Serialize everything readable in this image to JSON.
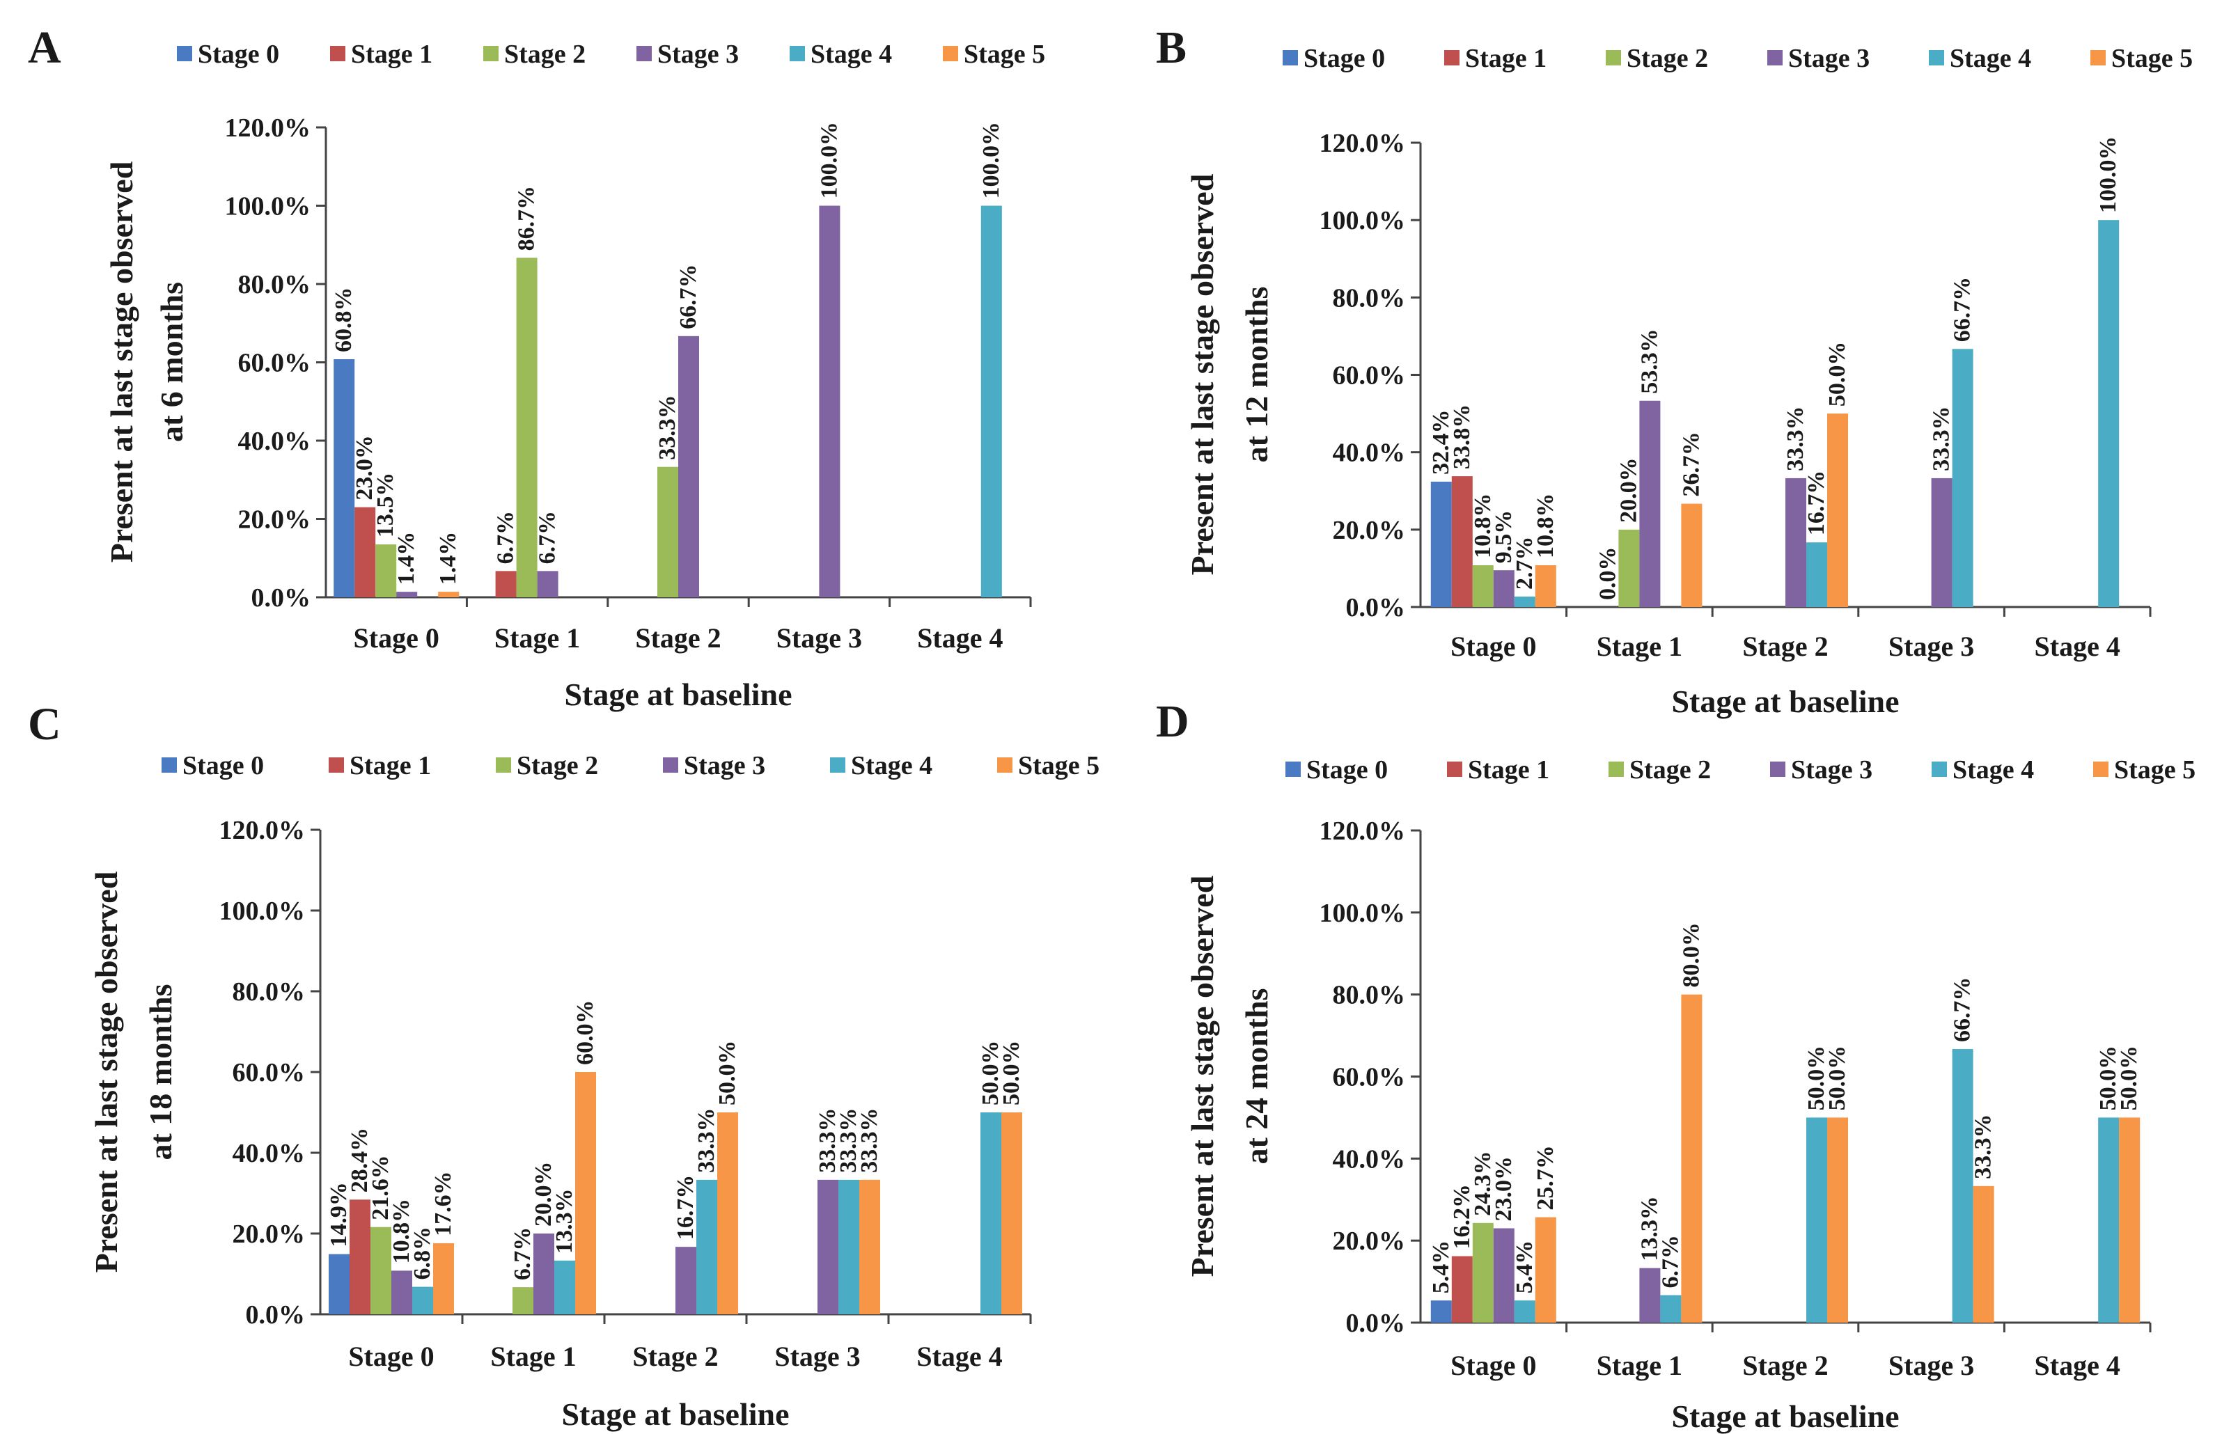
{
  "figure": {
    "legend_names": [
      "Stage 0",
      "Stage 1",
      "Stage 2",
      "Stage 3",
      "Stage 4",
      "Stage 5"
    ],
    "series_colors": [
      "#4a7bc2",
      "#c0504d",
      "#9bbb59",
      "#8064a2",
      "#4bacc6",
      "#f79646"
    ]
  },
  "chart_data": [
    {
      "panel": "A",
      "type": "bar",
      "title": "",
      "xlabel": "Stage at baseline",
      "ylabel": [
        "Present at last stage observed",
        "at 6 months"
      ],
      "ylim": [
        0,
        120
      ],
      "yticks": [
        "0.0%",
        "20.0%",
        "40.0%",
        "60.0%",
        "80.0%",
        "100.0%",
        "120.0%"
      ],
      "categories": [
        "Stage 0",
        "Stage 1",
        "Stage 2",
        "Stage 3",
        "Stage 4"
      ],
      "series": [
        {
          "name": "Stage 0",
          "values": [
            60.8,
            null,
            null,
            null,
            null
          ],
          "labels": [
            "60.8%",
            null,
            null,
            null,
            null
          ]
        },
        {
          "name": "Stage 1",
          "values": [
            23.0,
            6.7,
            null,
            null,
            null
          ],
          "labels": [
            "23.0%",
            "6.7%",
            null,
            null,
            null
          ]
        },
        {
          "name": "Stage 2",
          "values": [
            13.5,
            86.7,
            33.3,
            null,
            null
          ],
          "labels": [
            "13.5%",
            "86.7%",
            "33.3%",
            null,
            null
          ]
        },
        {
          "name": "Stage 3",
          "values": [
            1.4,
            6.7,
            66.7,
            100.0,
            null
          ],
          "labels": [
            "1.4%",
            "6.7%",
            "66.7%",
            "100.0%",
            null
          ]
        },
        {
          "name": "Stage 4",
          "values": [
            null,
            null,
            null,
            null,
            100.0
          ],
          "labels": [
            null,
            null,
            null,
            null,
            "100.0%"
          ]
        },
        {
          "name": "Stage 5",
          "values": [
            1.4,
            null,
            null,
            null,
            null
          ],
          "labels": [
            "1.4%",
            null,
            null,
            null,
            null
          ]
        }
      ]
    },
    {
      "panel": "B",
      "type": "bar",
      "title": "",
      "xlabel": "Stage at baseline",
      "ylabel": [
        "Present at last stage observed",
        "at 12 months"
      ],
      "ylim": [
        0,
        120
      ],
      "yticks": [
        "0.0%",
        "20.0%",
        "40.0%",
        "60.0%",
        "80.0%",
        "100.0%",
        "120.0%"
      ],
      "categories": [
        "Stage 0",
        "Stage 1",
        "Stage 2",
        "Stage 3",
        "Stage 4"
      ],
      "series": [
        {
          "name": "Stage 0",
          "values": [
            32.4,
            null,
            null,
            null,
            null
          ],
          "labels": [
            "32.4%",
            null,
            null,
            null,
            null
          ]
        },
        {
          "name": "Stage 1",
          "values": [
            33.8,
            0.0,
            null,
            null,
            null
          ],
          "labels": [
            "33.8%",
            "0.0%",
            null,
            null,
            null
          ]
        },
        {
          "name": "Stage 2",
          "values": [
            10.8,
            20.0,
            null,
            null,
            null
          ],
          "labels": [
            "10.8%",
            "20.0%",
            null,
            null,
            null
          ]
        },
        {
          "name": "Stage 3",
          "values": [
            9.5,
            53.3,
            33.3,
            33.3,
            null
          ],
          "labels": [
            "9.5%",
            "53.3%",
            "33.3%",
            "33.3%",
            null
          ]
        },
        {
          "name": "Stage 4",
          "values": [
            2.7,
            null,
            16.7,
            66.7,
            100.0
          ],
          "labels": [
            "2.7%",
            null,
            "16.7%",
            "66.7%",
            "100.0%"
          ]
        },
        {
          "name": "Stage 5",
          "values": [
            10.8,
            26.7,
            50.0,
            null,
            null
          ],
          "labels": [
            "10.8%",
            "26.7%",
            "50.0%",
            null,
            null
          ]
        }
      ]
    },
    {
      "panel": "C",
      "type": "bar",
      "title": "",
      "xlabel": "Stage at baseline",
      "ylabel": [
        "Present at last stage observed",
        "at 18 months"
      ],
      "ylim": [
        0,
        120
      ],
      "yticks": [
        "0.0%",
        "20.0%",
        "40.0%",
        "60.0%",
        "80.0%",
        "100.0%",
        "120.0%"
      ],
      "categories": [
        "Stage 0",
        "Stage 1",
        "Stage 2",
        "Stage 3",
        "Stage 4"
      ],
      "series": [
        {
          "name": "Stage 0",
          "values": [
            14.9,
            null,
            null,
            null,
            null
          ],
          "labels": [
            "14.9%",
            null,
            null,
            null,
            null
          ]
        },
        {
          "name": "Stage 1",
          "values": [
            28.4,
            null,
            null,
            null,
            null
          ],
          "labels": [
            "28.4%",
            null,
            null,
            null,
            null
          ]
        },
        {
          "name": "Stage 2",
          "values": [
            21.6,
            6.7,
            null,
            null,
            null
          ],
          "labels": [
            "21.6%",
            "6.7%",
            null,
            null,
            null
          ]
        },
        {
          "name": "Stage 3",
          "values": [
            10.8,
            20.0,
            16.7,
            33.3,
            null
          ],
          "labels": [
            "10.8%",
            "20.0%",
            "16.7%",
            "33.3%",
            null
          ]
        },
        {
          "name": "Stage 4",
          "values": [
            6.8,
            13.3,
            33.3,
            33.3,
            50.0
          ],
          "labels": [
            "6.8%",
            "13.3%",
            "33.3%",
            "33.3%",
            "50.0%"
          ]
        },
        {
          "name": "Stage 5",
          "values": [
            17.6,
            60.0,
            50.0,
            33.3,
            50.0
          ],
          "labels": [
            "17.6%",
            "60.0%",
            "50.0%",
            "33.3%",
            "50.0%"
          ]
        }
      ]
    },
    {
      "panel": "D",
      "type": "bar",
      "title": "",
      "xlabel": "Stage at baseline",
      "ylabel": [
        "Present at last stage observed",
        "at 24 months"
      ],
      "ylim": [
        0,
        120
      ],
      "yticks": [
        "0.0%",
        "20.0%",
        "40.0%",
        "60.0%",
        "80.0%",
        "100.0%",
        "120.0%"
      ],
      "categories": [
        "Stage 0",
        "Stage 1",
        "Stage 2",
        "Stage 3",
        "Stage 4"
      ],
      "series": [
        {
          "name": "Stage 0",
          "values": [
            5.4,
            null,
            null,
            null,
            null
          ],
          "labels": [
            "5.4%",
            null,
            null,
            null,
            null
          ]
        },
        {
          "name": "Stage 1",
          "values": [
            16.2,
            null,
            null,
            null,
            null
          ],
          "labels": [
            "16.2%",
            null,
            null,
            null,
            null
          ]
        },
        {
          "name": "Stage 2",
          "values": [
            24.3,
            null,
            null,
            null,
            null
          ],
          "labels": [
            "24.3%",
            null,
            null,
            null,
            null
          ]
        },
        {
          "name": "Stage 3",
          "values": [
            23.0,
            13.3,
            null,
            null,
            null
          ],
          "labels": [
            "23.0%",
            "13.3%",
            null,
            null,
            null
          ]
        },
        {
          "name": "Stage 4",
          "values": [
            5.4,
            6.7,
            50.0,
            66.7,
            50.0
          ],
          "labels": [
            "5.4%",
            "6.7%",
            "50.0%",
            "66.7%",
            "50.0%"
          ]
        },
        {
          "name": "Stage 5",
          "values": [
            25.7,
            80.0,
            50.0,
            33.3,
            50.0
          ],
          "labels": [
            "25.7%",
            "80.0%",
            "50.0%",
            "33.3%",
            "50.0%"
          ]
        }
      ]
    }
  ]
}
